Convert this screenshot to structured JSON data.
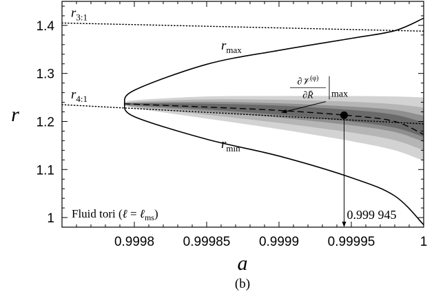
{
  "chart_data": {
    "type": "line",
    "xlabel": "a",
    "ylabel": "r",
    "caption": "(b)",
    "xlim": [
      0.99975,
      1.0
    ],
    "ylim": [
      0.98,
      1.45
    ],
    "x_ticks": [
      0.9998,
      0.99985,
      0.9999,
      0.99995,
      1.0
    ],
    "x_tick_labels": [
      "0.9998",
      "0.99985",
      "0.9999",
      "0.99995",
      "1"
    ],
    "y_ticks": [
      1.0,
      1.1,
      1.2,
      1.3,
      1.4
    ],
    "y_tick_labels": [
      "1",
      "1.1",
      "1.2",
      "1.3",
      "1.4"
    ],
    "legend_box": "Fluid tori (ℓ = ℓ_ms)",
    "grid": false,
    "series": [
      {
        "name": "r_max",
        "label_sub": "max",
        "style": "solid",
        "x": [
          0.999793,
          0.9998,
          0.99985,
          0.9999,
          0.99995,
          0.99998,
          1.0
        ],
        "y": [
          1.237,
          1.265,
          1.319,
          1.348,
          1.373,
          1.389,
          1.415
        ]
      },
      {
        "name": "r_min",
        "label_sub": "min",
        "style": "solid",
        "x": [
          0.999793,
          0.9998,
          0.99985,
          0.9999,
          0.99995,
          0.99998,
          1.0
        ],
        "y": [
          1.237,
          1.21,
          1.163,
          1.128,
          1.083,
          1.045,
          0.985
        ]
      },
      {
        "name": "∂V(φ)/∂R̄ max",
        "style": "dashed",
        "x": [
          0.999793,
          0.9998,
          0.99985,
          0.9999,
          0.99995,
          0.99998,
          1.0
        ],
        "y": [
          1.237,
          1.236,
          1.23,
          1.223,
          1.212,
          1.2,
          1.173
        ]
      },
      {
        "name": "r_3:1",
        "label_text": "r",
        "label_sub": "3:1",
        "style": "dotted",
        "x": [
          0.99975,
          1.0
        ],
        "y": [
          1.405,
          1.388
        ]
      },
      {
        "name": "r_4:1",
        "label_text": "r",
        "label_sub": "4:1",
        "style": "dotted",
        "x": [
          0.99975,
          1.0
        ],
        "y": [
          1.235,
          1.195
        ]
      }
    ],
    "bands": [
      {
        "shade": "#d3d3d3",
        "x": [
          0.999793,
          0.9998,
          0.99985,
          0.9999,
          0.99995,
          0.99998,
          1.0
        ],
        "upper": [
          1.237,
          1.244,
          1.252,
          1.253,
          1.253,
          1.252,
          1.25
        ],
        "lower": [
          1.237,
          1.228,
          1.206,
          1.184,
          1.159,
          1.14,
          1.118
        ]
      },
      {
        "shade": "#b5b5b5",
        "x": [
          0.999793,
          0.9998,
          0.99985,
          0.9999,
          0.99995,
          0.99998,
          1.0
        ],
        "upper": [
          1.237,
          1.241,
          1.246,
          1.245,
          1.241,
          1.236,
          1.229
        ],
        "lower": [
          1.237,
          1.23,
          1.214,
          1.197,
          1.177,
          1.161,
          1.14
        ]
      },
      {
        "shade": "#8f8f8f",
        "x": [
          0.999793,
          0.9998,
          0.99985,
          0.9999,
          0.99995,
          0.99998,
          1.0
        ],
        "upper": [
          1.237,
          1.239,
          1.241,
          1.238,
          1.231,
          1.224,
          1.212
        ],
        "lower": [
          1.237,
          1.232,
          1.221,
          1.208,
          1.192,
          1.178,
          1.158
        ]
      },
      {
        "shade": "#6a6a6a",
        "x": [
          0.999793,
          0.9998,
          0.99985,
          0.9999,
          0.99995,
          0.99998,
          1.0
        ],
        "upper": [
          1.237,
          1.238,
          1.237,
          1.233,
          1.224,
          1.214,
          1.198
        ],
        "lower": [
          1.237,
          1.234,
          1.225,
          1.214,
          1.2,
          1.187,
          1.168
        ]
      }
    ],
    "marker": {
      "x": 0.999945,
      "y": 1.213,
      "label": "0.999 945"
    },
    "annotations": {
      "rmax_label_pos": [
        0.99986,
        1.35
      ],
      "rmin_label_pos": [
        0.99986,
        1.145
      ],
      "derivative_label_pos": [
        0.99992,
        1.27
      ],
      "derivative_arrow_to": [
        0.999902,
        1.219
      ]
    }
  }
}
